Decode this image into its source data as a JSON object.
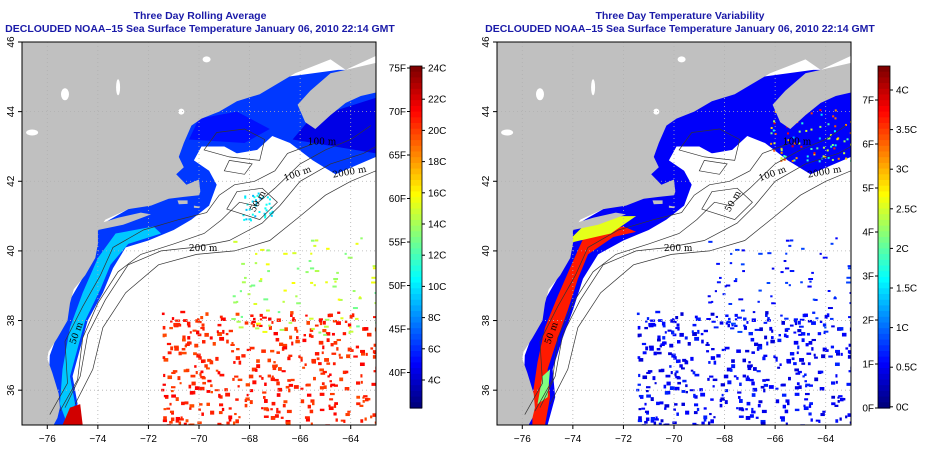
{
  "colors": {
    "land": "#c0c0c0",
    "ocean_nodata": "#ffffff",
    "title": "#1a1aa8",
    "grid": "#b0b0b0"
  },
  "left_panel": {
    "title_line1": "Three Day Rolling Average",
    "title_line2": "DECLOUDED NOAA–15 Sea Surface Temperature January 06, 2010 22:14 GMT",
    "colorbar_left_labels": [
      "75F",
      "70F",
      "65F",
      "60F",
      "55F",
      "50F",
      "45F",
      "40F"
    ],
    "colorbar_right_labels": [
      "24C",
      "22C",
      "20C",
      "18C",
      "16C",
      "14C",
      "12C",
      "10C",
      "8C",
      "6C",
      "4C"
    ],
    "colormap": "jet"
  },
  "right_panel": {
    "title_line1": "Three Day Temperature Variability",
    "title_line2": "DECLOUDED NOAA–15 Sea Surface Temperature January 06, 2010 22:14 GMT",
    "colorbar_left_labels": [
      "7F",
      "6F",
      "5F",
      "4F",
      "3F",
      "2F",
      "1F",
      "0F"
    ],
    "colorbar_right_labels": [
      "4C",
      "3.5C",
      "3C",
      "2.5C",
      "2C",
      "1.5C",
      "1C",
      "0.5C",
      "0C"
    ],
    "colormap": "jet"
  },
  "map": {
    "x_ticks": [
      "−76",
      "−74",
      "−72",
      "−70",
      "−68",
      "−66",
      "−64"
    ],
    "y_ticks": [
      "36",
      "38",
      "40",
      "42",
      "44",
      "46"
    ],
    "lon_range": [
      -77,
      -63
    ],
    "lat_range": [
      35,
      46
    ],
    "contour_labels": [
      "50 m",
      "100 m",
      "200 m",
      "2000 m",
      "50 m",
      "100 m"
    ]
  }
}
